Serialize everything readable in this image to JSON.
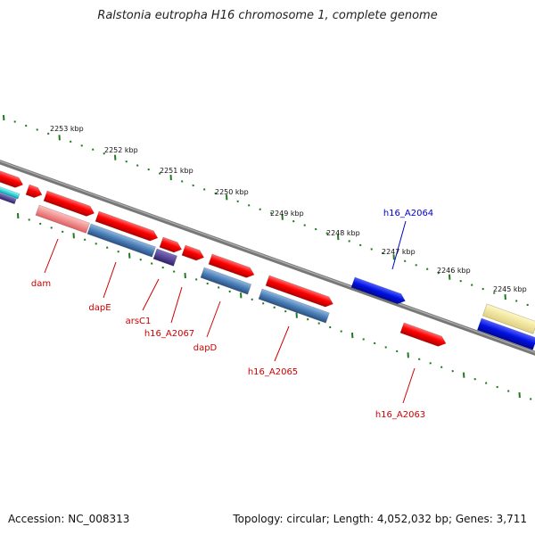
{
  "title": "Ralstonia eutropha H16 chromosome 1, complete genome",
  "accession_text": "Accession: NC_008313",
  "topology_text": "Topology: circular; Length: 4,052,032 bp; Genes: 3,711",
  "colors": {
    "backbone": "#7a7a7a",
    "tick": "#1e7a1e",
    "gene_red": "#ff1010",
    "gene_blue": "#0a1ee6",
    "cds_steelblue": "#4a7fb8",
    "label_red": "#cc0000",
    "label_blue": "#0000cc"
  },
  "diagram": {
    "scale_labels": [
      "2253 kbp",
      "2252 kbp",
      "2251 kbp",
      "2250 kbp",
      "2249 kbp",
      "2248 kbp",
      "2247 kbp",
      "2246 kbp",
      "2245 kbp"
    ],
    "gene_labels": [
      "dam",
      "dapE",
      "arsC1",
      "h16_A2067",
      "dapD",
      "h16_A2065",
      "h16_A2063",
      "h16_A2064"
    ]
  }
}
